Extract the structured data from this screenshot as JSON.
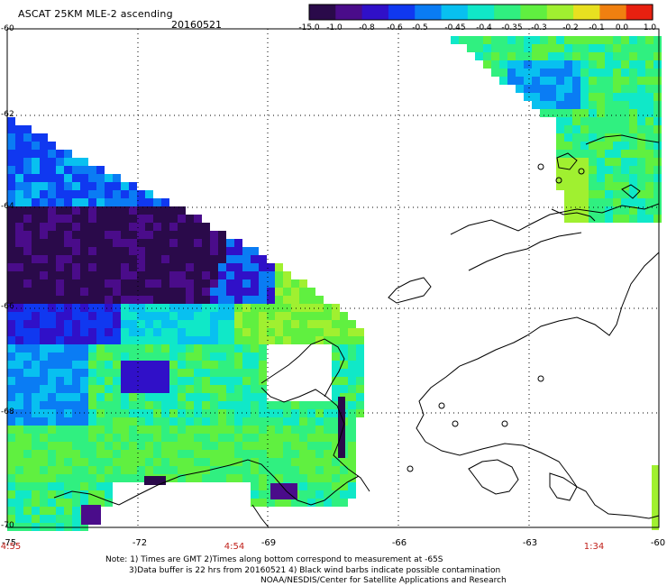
{
  "header": {
    "title": "ASCAT 25KM MLE-2 ascending",
    "date": "20160521"
  },
  "colorbar": {
    "ticks": [
      "-15.0",
      "-1.0",
      "-0.8",
      "-0.6",
      "-0.5",
      "-0.45",
      "-0.4",
      "-0.35",
      "-0.3",
      "-0.2",
      "-0.1",
      "0.0",
      "1.0"
    ],
    "colors": [
      "#2a0a4a",
      "#4a0c8a",
      "#3010c8",
      "#1038f0",
      "#0a7cf4",
      "#08c0f0",
      "#10e8c8",
      "#30f080",
      "#60f040",
      "#a0f030",
      "#e8e020",
      "#f08010",
      "#e82010"
    ]
  },
  "axes": {
    "lat_labels": [
      "-60",
      "-62",
      "-64",
      "-66",
      "-68",
      "-70"
    ],
    "lon_labels": [
      "-75",
      "-72",
      "-69",
      "-66",
      "-63",
      "-60"
    ],
    "time_labels": [
      "4:55",
      "4:54",
      "1:34"
    ]
  },
  "notes": {
    "line1": "Note: 1) Times are GMT 2)Times along bottom correspond to measurement at -65S",
    "line2": "3)Data buffer is 22 hrs from 20160521 4) Black wind barbs indicate possible contamination",
    "line3": "NOAA/NESDIS/Center for Satellite Applications and Research"
  }
}
